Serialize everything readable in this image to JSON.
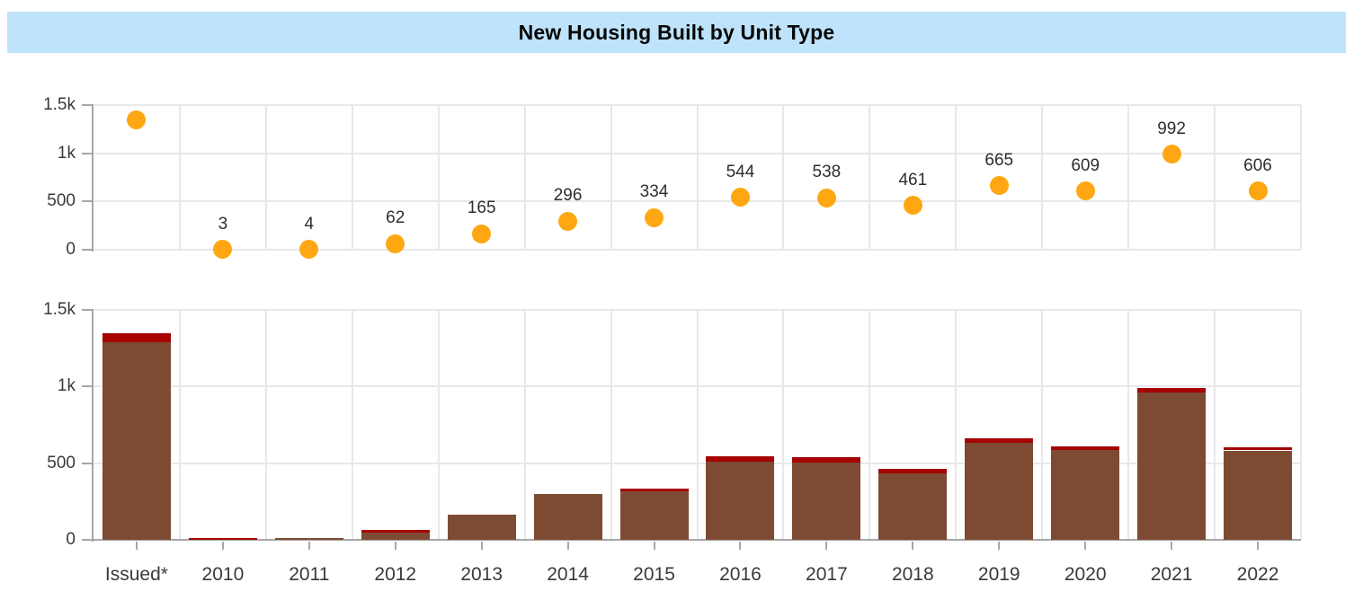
{
  "title": "New Housing Built by Unit Type",
  "colors": {
    "header_bg": "#BEE3FA",
    "title_text": "#060606",
    "dot": "#FFA713",
    "bar_primary": "#7D4B33",
    "bar_secondary": "#A60303",
    "axis_line": "#A6A6A6",
    "gridline": "#E8E8E8",
    "axis_label": "#3A3A3A",
    "point_label": "#2E2E2E"
  },
  "chart_data": [
    {
      "type": "scatter",
      "panel": "top",
      "categories": [
        "Issued*",
        "2010",
        "2011",
        "2012",
        "2013",
        "2014",
        "2015",
        "2016",
        "2017",
        "2018",
        "2019",
        "2020",
        "2021",
        "2022"
      ],
      "values": [
        1350,
        3,
        4,
        62,
        165,
        296,
        334,
        544,
        538,
        461,
        665,
        609,
        992,
        606
      ],
      "point_labels": [
        "",
        "3",
        "4",
        "62",
        "165",
        "296",
        "334",
        "544",
        "538",
        "461",
        "665",
        "609",
        "992",
        "606"
      ],
      "ylim": [
        0,
        1500
      ],
      "yticks": [
        {
          "value": 0,
          "label": "0"
        },
        {
          "value": 500,
          "label": "500"
        },
        {
          "value": 1000,
          "label": "1k"
        },
        {
          "value": 1500,
          "label": "1.5k"
        }
      ],
      "grid": true,
      "legend": "none",
      "x_axis_labels_shown": false
    },
    {
      "type": "bar",
      "panel": "bottom",
      "stacked": true,
      "categories": [
        "Issued*",
        "2010",
        "2011",
        "2012",
        "2013",
        "2014",
        "2015",
        "2016",
        "2017",
        "2018",
        "2019",
        "2020",
        "2021",
        "2022"
      ],
      "series": [
        {
          "name": "brown-segment",
          "color": "#7D4B33",
          "values": [
            1290,
            0,
            4,
            47,
            165,
            296,
            319,
            511,
            505,
            431,
            630,
            585,
            960,
            583
          ]
        },
        {
          "name": "red-segment",
          "color": "#A60303",
          "values": [
            60,
            3,
            0,
            15,
            0,
            0,
            15,
            33,
            33,
            30,
            35,
            24,
            32,
            23
          ]
        }
      ],
      "totals": [
        1350,
        3,
        4,
        62,
        165,
        296,
        334,
        544,
        538,
        461,
        665,
        609,
        992,
        606
      ],
      "ylim": [
        0,
        1500
      ],
      "yticks": [
        {
          "value": 0,
          "label": "0"
        },
        {
          "value": 500,
          "label": "500"
        },
        {
          "value": 1000,
          "label": "1k"
        },
        {
          "value": 1500,
          "label": "1.5k"
        }
      ],
      "grid": true,
      "legend": "none",
      "x_axis_labels_shown": true
    }
  ]
}
